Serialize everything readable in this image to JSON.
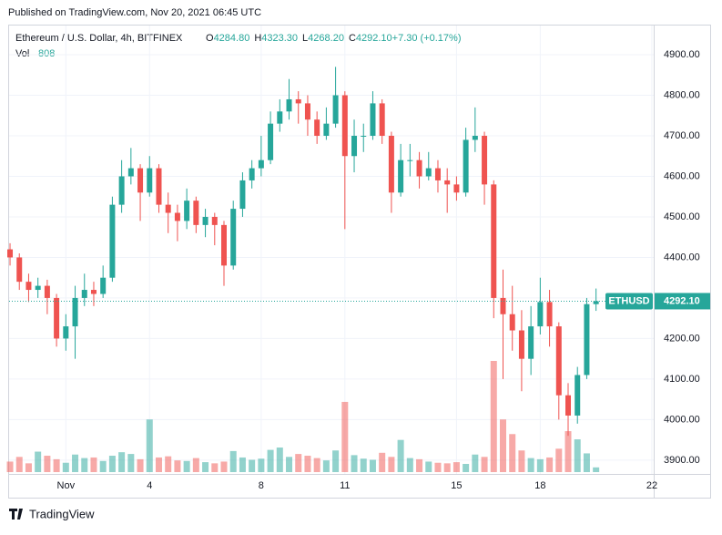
{
  "header": {
    "published": "Published on TradingView.com, Nov 20, 2021 06:45 UTC"
  },
  "chart_data": {
    "type": "candlestick",
    "symbol": "Ethereum / U.S. Dollar, 4h, BITFINEX",
    "legend": [
      {
        "key": "O",
        "value": "4284.80"
      },
      {
        "key": "H",
        "value": "4323.30"
      },
      {
        "key": "L",
        "value": "4268.20"
      },
      {
        "key": "C",
        "value": "4292.10"
      },
      {
        "key": "",
        "value": "+7.30 (+0.17%)"
      }
    ],
    "volume_label": "Vol",
    "volume_value": 808,
    "open": [
      4420,
      4400,
      4340,
      4320,
      4330,
      4300,
      4200,
      4230,
      4300,
      4320,
      4310,
      4350,
      4530,
      4600,
      4620,
      4560,
      4620,
      4530,
      4510,
      4490,
      4540,
      4480,
      4500,
      4480,
      4380,
      4520,
      4590,
      4620,
      4640,
      4730,
      4760,
      4790,
      4780,
      4740,
      4700,
      4730,
      4800,
      4650,
      4700,
      4700,
      4780,
      4700,
      4560,
      4640,
      4640,
      4600,
      4620,
      4590,
      4580,
      4560,
      4690,
      4700,
      4580,
      4300,
      4260,
      4220,
      4150,
      4230,
      4290,
      4230,
      4060,
      4010,
      4110,
      4284.8
    ],
    "high": [
      4435,
      4410,
      4360,
      4350,
      4345,
      4310,
      4260,
      4330,
      4360,
      4340,
      4380,
      4550,
      4640,
      4670,
      4630,
      4650,
      4630,
      4560,
      4530,
      4570,
      4550,
      4520,
      4510,
      4490,
      4540,
      4610,
      4640,
      4700,
      4760,
      4790,
      4840,
      4810,
      4800,
      4760,
      4770,
      4870,
      4810,
      4740,
      4730,
      4810,
      4790,
      4710,
      4680,
      4680,
      4660,
      4660,
      4640,
      4620,
      4600,
      4720,
      4770,
      4710,
      4590,
      4370,
      4330,
      4270,
      4280,
      4350,
      4320,
      4240,
      4090,
      4130,
      4300,
      4323.3
    ],
    "low": [
      4380,
      4320,
      4290,
      4300,
      4260,
      4180,
      4170,
      4150,
      4280,
      4280,
      4300,
      4340,
      4510,
      4580,
      4490,
      4550,
      4510,
      4460,
      4440,
      4470,
      4460,
      4450,
      4430,
      4330,
      4370,
      4500,
      4570,
      4600,
      4630,
      4710,
      4740,
      4730,
      4700,
      4680,
      4690,
      4720,
      4470,
      4610,
      4660,
      4690,
      4680,
      4510,
      4550,
      4600,
      4570,
      4590,
      4560,
      4510,
      4540,
      4550,
      4660,
      4530,
      4250,
      4100,
      4170,
      4070,
      4110,
      4210,
      4180,
      4000,
      3960,
      3990,
      4100,
      4268.2
    ],
    "close": [
      4400,
      4340,
      4320,
      4330,
      4300,
      4200,
      4230,
      4300,
      4320,
      4310,
      4350,
      4530,
      4600,
      4620,
      4560,
      4620,
      4530,
      4510,
      4490,
      4540,
      4480,
      4500,
      4480,
      4380,
      4520,
      4590,
      4620,
      4640,
      4730,
      4760,
      4790,
      4780,
      4740,
      4700,
      4730,
      4800,
      4650,
      4700,
      4700,
      4780,
      4700,
      4560,
      4640,
      4640,
      4600,
      4620,
      4590,
      4580,
      4560,
      4690,
      4700,
      4580,
      4300,
      4260,
      4220,
      4150,
      4230,
      4290,
      4230,
      4060,
      4010,
      4110,
      4284.8,
      4292.1
    ],
    "volume": [
      1800,
      2600,
      1500,
      3500,
      2800,
      2200,
      1600,
      3000,
      2400,
      2500,
      1900,
      2800,
      3400,
      3100,
      2200,
      9000,
      2500,
      2700,
      2000,
      1900,
      2400,
      1700,
      1500,
      1800,
      3600,
      2500,
      2100,
      2300,
      3800,
      4200,
      2600,
      3100,
      2800,
      2400,
      2000,
      3700,
      12000,
      2900,
      2300,
      2100,
      3300,
      2600,
      5500,
      2400,
      2200,
      1800,
      1600,
      1500,
      1700,
      1400,
      3000,
      2600,
      19000,
      9000,
      6500,
      3700,
      2400,
      2200,
      2500,
      4000,
      7000,
      5600,
      3200,
      808
    ],
    "xlim": [
      -0.1,
      69.2
    ],
    "xticks": [
      {
        "value": 6,
        "label": "Nov"
      },
      {
        "value": 15,
        "label": "4"
      },
      {
        "value": 27,
        "label": "8"
      },
      {
        "value": 36,
        "label": "11"
      },
      {
        "value": 48,
        "label": "15"
      },
      {
        "value": 57,
        "label": "18"
      },
      {
        "value": 69,
        "label": "22"
      }
    ],
    "ylim": [
      3866,
      4972
    ],
    "yticks": [
      {
        "value": 3900,
        "label": "3900.00"
      },
      {
        "value": 4000,
        "label": "4000.00"
      },
      {
        "value": 4100,
        "label": "4100.00"
      },
      {
        "value": 4200,
        "label": "4200.00"
      },
      {
        "value": 4300,
        "label": "4300.00"
      },
      {
        "value": 4400,
        "label": "4400.00"
      },
      {
        "value": 4500,
        "label": "4500.00"
      },
      {
        "value": 4600,
        "label": "4600.00"
      },
      {
        "value": 4700,
        "label": "4700.00"
      },
      {
        "value": 4800,
        "label": "4800.00"
      },
      {
        "value": 4900,
        "label": "4900.00"
      }
    ],
    "grid": true,
    "colors": {
      "up": "#26a69a",
      "down": "#ef5350"
    },
    "price_tag": {
      "symbol": "ETHUSD",
      "price": "4292.10"
    }
  },
  "footer": {
    "brand": "TradingView"
  }
}
